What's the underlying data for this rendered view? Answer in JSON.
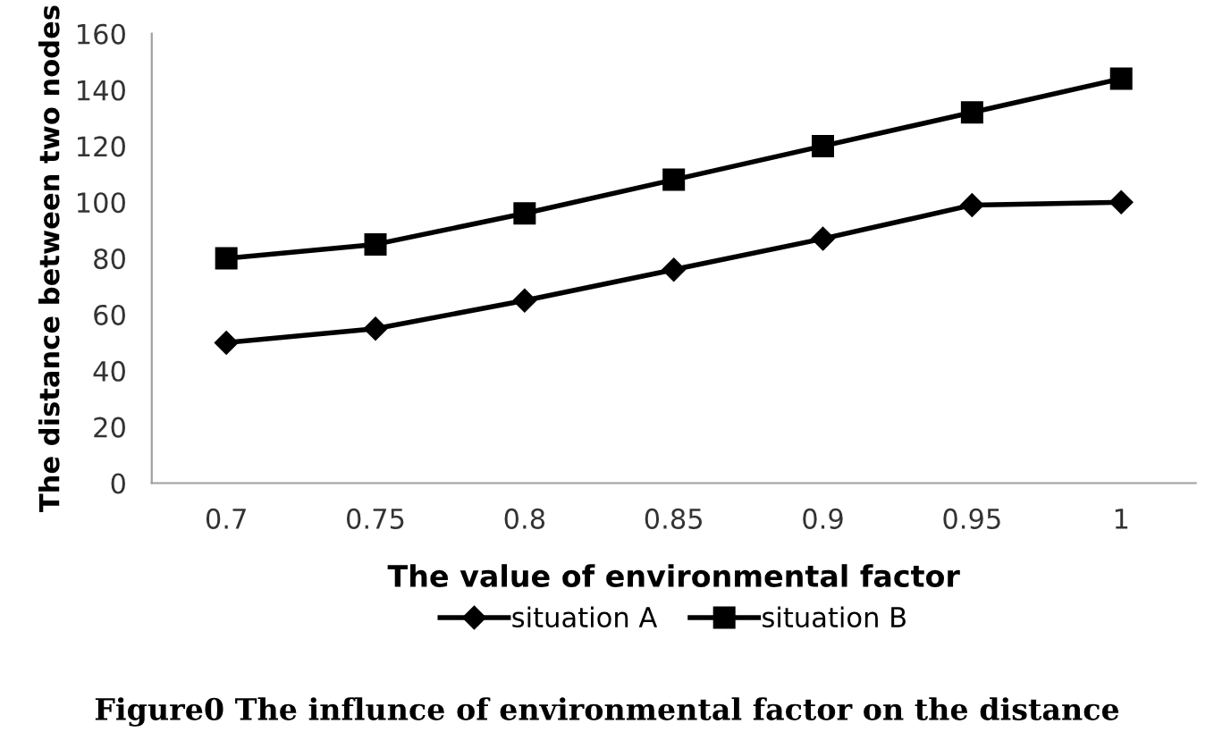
{
  "chart_data": {
    "type": "line",
    "categories": [
      "0.7",
      "0.75",
      "0.8",
      "0.85",
      "0.9",
      "0.95",
      "1"
    ],
    "series": [
      {
        "name": "situation A",
        "color": "#000000",
        "values": [
          50,
          55,
          65,
          76,
          87,
          99,
          100
        ],
        "marker": "diamond"
      },
      {
        "name": "situation B",
        "color": "#000000",
        "values": [
          80,
          85,
          96,
          108,
          120,
          132,
          144
        ],
        "marker": "square"
      }
    ],
    "xlabel": "The value of environmental factor",
    "ylabel": "The distance between two nodes",
    "ylim": [
      0,
      160
    ],
    "yticks": [
      0,
      20,
      40,
      60,
      80,
      100,
      120,
      140,
      160
    ],
    "grid": false,
    "legend": "bottom",
    "line_style": "solid",
    "annotations": [
      "Figure0 The influnce of environmental factor on the distance"
    ]
  }
}
